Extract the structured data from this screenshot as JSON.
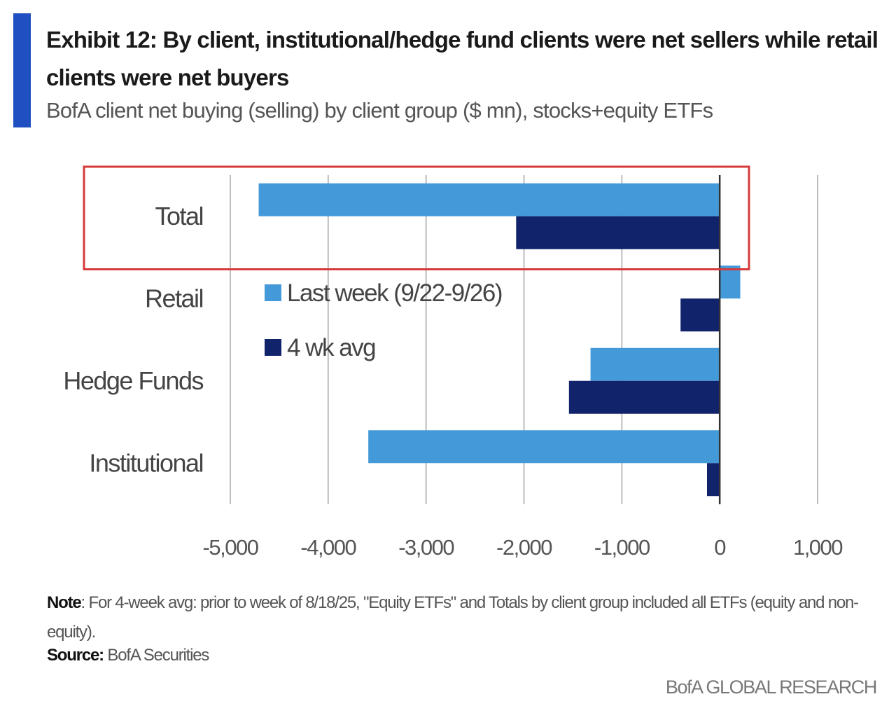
{
  "header": {
    "title": "Exhibit 12: By client, institutional/hedge fund clients were net sellers while retail clients were net buyers",
    "subtitle": "BofA client net buying (selling) by client group ($ mn), stocks+equity ETFs"
  },
  "footer": {
    "note_label": "Note",
    "note_text": ": For 4-week avg: prior to week of 8/18/25, \"Equity ETFs\" and Totals by client group included all ETFs (equity and non-equity).",
    "source_label": "Source:",
    "source_text": " BofA Securities",
    "brand": "BofA GLOBAL RESEARCH"
  },
  "colors": {
    "accent": "#1f4fc1",
    "last_week": "#4499d8",
    "four_wk_avg": "#11236b",
    "highlight_box": "#d63a3a",
    "grid": "#bdbdbd",
    "zero_line": "#333333"
  },
  "chart_data": {
    "type": "bar",
    "orientation": "horizontal",
    "title": "Exhibit 12: By client, institutional/hedge fund clients were net sellers while retail clients were net buyers",
    "subtitle": "BofA client net buying (selling) by client group ($ mn), stocks+equity ETFs",
    "xlabel": "",
    "ylabel": "",
    "categories": [
      "Total",
      "Retail",
      "Hedge Funds",
      "Institutional"
    ],
    "series": [
      {
        "name": "Last week (9/22-9/26)",
        "values": [
          -4710,
          210,
          -1320,
          -3590
        ]
      },
      {
        "name": "4 wk avg",
        "values": [
          -2080,
          -400,
          -1540,
          -130
        ]
      }
    ],
    "xlim": [
      -5000,
      1000
    ],
    "xticks": [
      -5000,
      -4000,
      -3000,
      -2000,
      -1000,
      0,
      1000
    ],
    "xtick_labels": [
      "-5,000",
      "-4,000",
      "-3,000",
      "-2,000",
      "-1,000",
      "0",
      "1,000"
    ],
    "grid": "vertical",
    "legend_position": "center-left inside plot",
    "highlight": "Total"
  }
}
